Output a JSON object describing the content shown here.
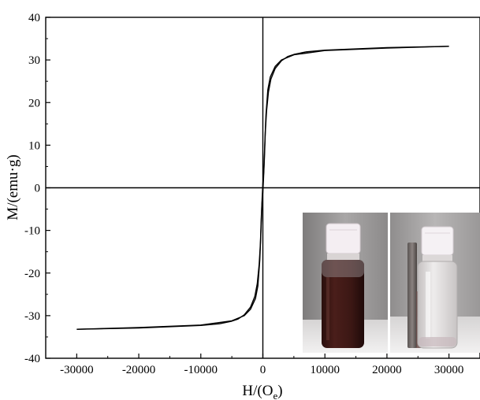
{
  "chart_data": {
    "type": "line",
    "title": "",
    "xlabel": "H/(O",
    "xlabel_sub": "e",
    "xlabel_close": ")",
    "ylabel": "M/(emu·g)",
    "xlim": [
      -35000,
      35000
    ],
    "ylim": [
      -40,
      40
    ],
    "x_ticks": [
      -30000,
      -20000,
      -10000,
      0,
      10000,
      20000,
      30000
    ],
    "y_ticks": [
      -40,
      -30,
      -20,
      -10,
      0,
      10,
      20,
      30,
      40
    ],
    "x_tick_labels": [
      "-30000",
      "-20000",
      "-10000",
      "0",
      "10000",
      "20000",
      "30000"
    ],
    "y_tick_labels": [
      "-40",
      "-30",
      "-20",
      "-10",
      "0",
      "10",
      "20",
      "30",
      "40"
    ],
    "grid": false,
    "series": [
      {
        "branch": "descending",
        "x": [
          30000,
          20000,
          10000,
          5000,
          3000,
          2000,
          1200,
          800,
          500,
          300,
          150,
          0,
          -100,
          -250,
          -400,
          -600,
          -900,
          -1300,
          -2000,
          -3000,
          -4000,
          -5000,
          -7000,
          -10000,
          -20000,
          -30000
        ],
        "y": [
          33.2,
          32.8,
          32.2,
          31.2,
          30.0,
          28.5,
          26.0,
          23.0,
          17.0,
          10.0,
          4.0,
          1.0,
          -2.0,
          -7.0,
          -13.0,
          -18.0,
          -22.5,
          -25.5,
          -28.0,
          -29.8,
          -30.8,
          -31.3,
          -31.9,
          -32.3,
          -32.9,
          -33.2
        ]
      },
      {
        "branch": "ascending",
        "x": [
          -30000,
          -20000,
          -10000,
          -5000,
          -3000,
          -2000,
          -1200,
          -800,
          -500,
          -300,
          -150,
          0,
          100,
          250,
          400,
          600,
          900,
          1300,
          2000,
          3000,
          4000,
          5000,
          7000,
          10000,
          20000,
          30000
        ],
        "y": [
          -33.2,
          -32.8,
          -32.2,
          -31.2,
          -30.0,
          -28.5,
          -26.0,
          -23.0,
          -17.0,
          -10.0,
          -4.0,
          -1.0,
          2.0,
          7.0,
          13.0,
          18.0,
          22.5,
          25.5,
          28.0,
          29.8,
          30.8,
          31.3,
          31.9,
          32.3,
          32.9,
          33.2
        ]
      }
    ],
    "inset": {
      "panels": [
        {
          "name": "vial-dispersed",
          "liquid_color": "#3a1714"
        },
        {
          "name": "vial-separated-by-magnet",
          "liquid_color": "#dcd8d6"
        }
      ]
    }
  }
}
